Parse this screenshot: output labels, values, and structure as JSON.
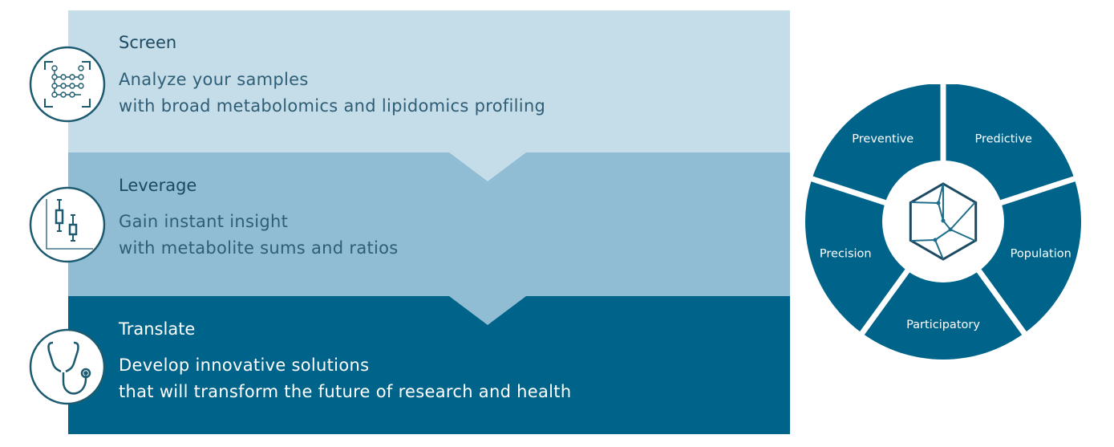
{
  "steps": [
    {
      "title": "Screen",
      "line1": "Analyze your samples",
      "line2": "with broad metabolomics and lipidomics profiling",
      "icon": "network-scan-icon"
    },
    {
      "title": "Leverage",
      "line1": "Gain instant insight",
      "line2": "with metabolite sums and ratios",
      "icon": "box-plot-icon"
    },
    {
      "title": "Translate",
      "line1": "Develop innovative solutions",
      "line2": "that will transform the future of research and health",
      "icon": "stethoscope-icon"
    }
  ],
  "wheel": {
    "segments": [
      "Predictive",
      "Population",
      "Participatory",
      "Precision",
      "Preventive"
    ],
    "center_icon": "hexagon-network-icon"
  },
  "colors": {
    "light": "#c4dde9",
    "mid": "#90bcd4",
    "dark": "#00648a",
    "text": "#1c4a62"
  }
}
